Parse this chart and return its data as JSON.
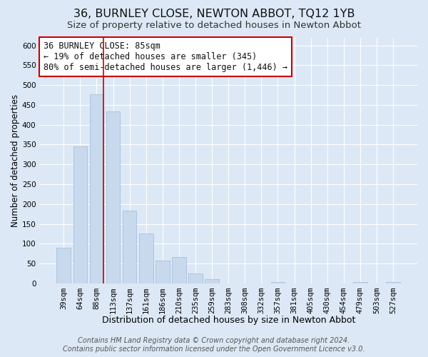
{
  "title1": "36, BURNLEY CLOSE, NEWTON ABBOT, TQ12 1YB",
  "title2": "Size of property relative to detached houses in Newton Abbot",
  "xlabel": "Distribution of detached houses by size in Newton Abbot",
  "ylabel": "Number of detached properties",
  "bar_labels": [
    "39sqm",
    "64sqm",
    "88sqm",
    "113sqm",
    "137sqm",
    "161sqm",
    "186sqm",
    "210sqm",
    "235sqm",
    "259sqm",
    "283sqm",
    "308sqm",
    "332sqm",
    "357sqm",
    "381sqm",
    "405sqm",
    "430sqm",
    "454sqm",
    "479sqm",
    "503sqm",
    "527sqm"
  ],
  "bar_values": [
    90,
    345,
    477,
    433,
    183,
    125,
    57,
    67,
    25,
    11,
    0,
    0,
    0,
    3,
    0,
    0,
    0,
    0,
    3,
    0,
    3
  ],
  "bar_color": "#c8d9ee",
  "bar_edge_color": "#a8c0dc",
  "highlight_index": 2,
  "highlight_line_color": "#cc0000",
  "ylim": [
    0,
    620
  ],
  "yticks": [
    0,
    50,
    100,
    150,
    200,
    250,
    300,
    350,
    400,
    450,
    500,
    550,
    600
  ],
  "annotation_line1": "36 BURNLEY CLOSE: 85sqm",
  "annotation_line2": "← 19% of detached houses are smaller (345)",
  "annotation_line3": "80% of semi-detached houses are larger (1,446) →",
  "annotation_box_color": "#ffffff",
  "annotation_box_edge_color": "#cc0000",
  "footer1": "Contains HM Land Registry data © Crown copyright and database right 2024.",
  "footer2": "Contains public sector information licensed under the Open Government Licence v3.0.",
  "background_color": "#dce8f5",
  "plot_bg_color": "#dce8f5",
  "grid_color": "#ffffff",
  "title1_fontsize": 11.5,
  "title2_fontsize": 9.5,
  "xlabel_fontsize": 9,
  "ylabel_fontsize": 8.5,
  "tick_fontsize": 7.5,
  "annotation_fontsize": 8.5,
  "footer_fontsize": 7
}
